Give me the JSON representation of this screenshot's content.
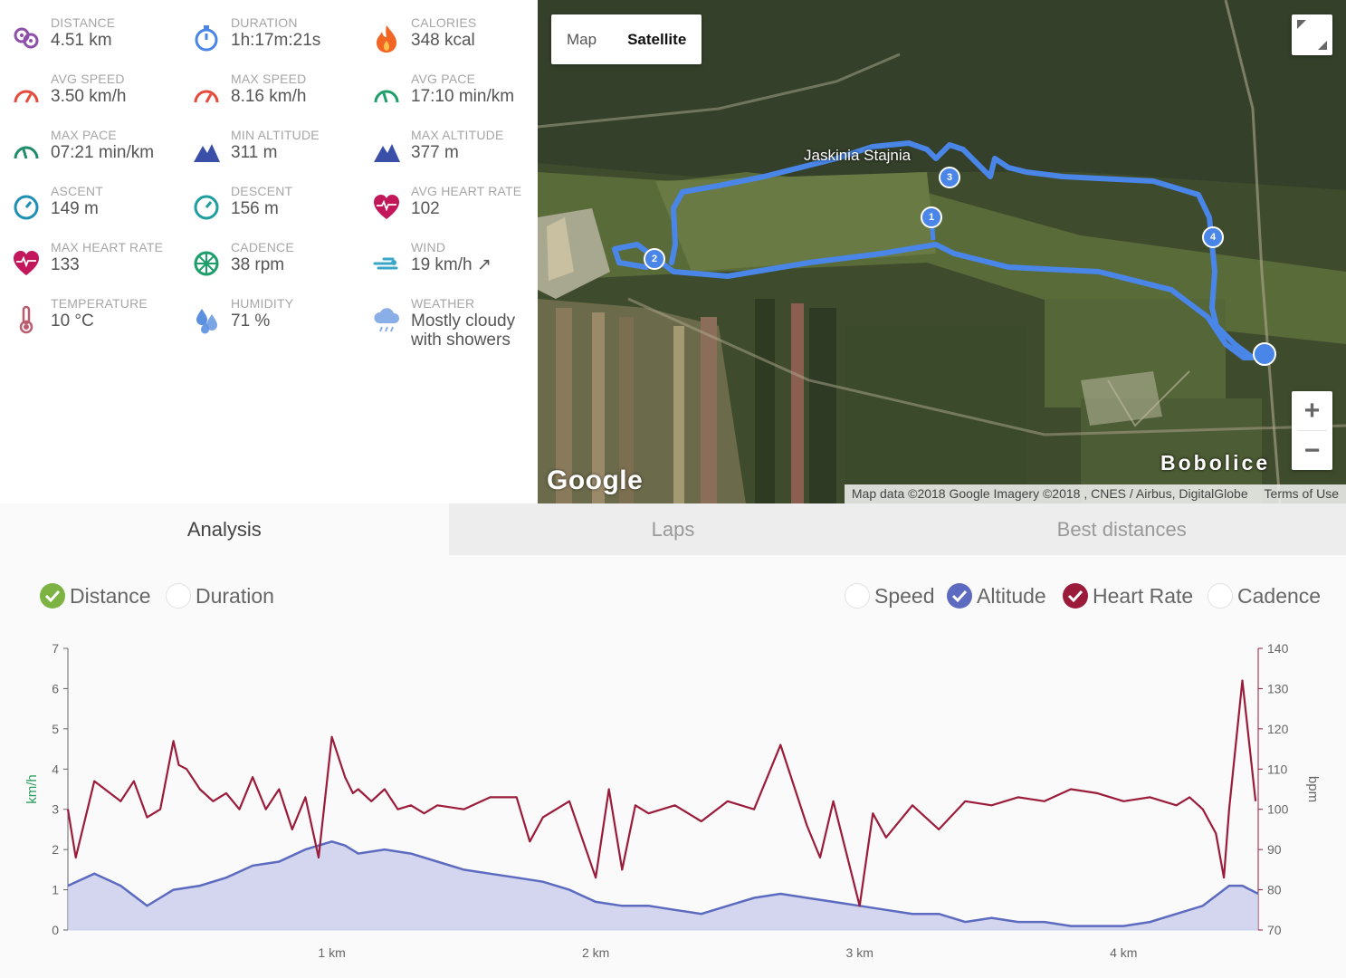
{
  "stats": [
    {
      "label": "DISTANCE",
      "value": "4.51 km",
      "icon": "distance-icon",
      "color": "#8e4fa8"
    },
    {
      "label": "DURATION",
      "value": "1h:17m:21s",
      "icon": "stopwatch-icon",
      "color": "#4a86e8"
    },
    {
      "label": "CALORIES",
      "value": "348 kcal",
      "icon": "flame-icon",
      "color": "#f26522"
    },
    {
      "label": "AVG SPEED",
      "value": "3.50 km/h",
      "icon": "speedometer-icon",
      "color": "#e44b3c"
    },
    {
      "label": "MAX SPEED",
      "value": "8.16 km/h",
      "icon": "speedometer-icon",
      "color": "#e44b3c"
    },
    {
      "label": "AVG PACE",
      "value": "17:10 min/km",
      "icon": "gauge-icon",
      "color": "#1e9e6b"
    },
    {
      "label": "MAX PACE",
      "value": "07:21 min/km",
      "icon": "gauge-icon",
      "color": "#1e8c6b"
    },
    {
      "label": "MIN ALTITUDE",
      "value": "311 m",
      "icon": "mountain-icon",
      "color": "#3a4fa8"
    },
    {
      "label": "MAX ALTITUDE",
      "value": "377 m",
      "icon": "mountain-icon",
      "color": "#3a4fa8"
    },
    {
      "label": "ASCENT",
      "value": "149 m",
      "icon": "compass-icon",
      "color": "#1e8fb5"
    },
    {
      "label": "DESCENT",
      "value": "156 m",
      "icon": "compass-icon",
      "color": "#1e9e9e"
    },
    {
      "label": "AVG HEART RATE",
      "value": "102",
      "icon": "heart-icon",
      "color": "#c2185b"
    },
    {
      "label": "MAX HEART RATE",
      "value": "133",
      "icon": "heart-icon",
      "color": "#c2185b"
    },
    {
      "label": "CADENCE",
      "value": "38 rpm",
      "icon": "wheel-icon",
      "color": "#1e9e6b"
    },
    {
      "label": "WIND",
      "value": "19 km/h ↗",
      "icon": "wind-icon",
      "color": "#3aa6c8"
    },
    {
      "label": "TEMPERATURE",
      "value": "10 °C",
      "icon": "thermometer-icon",
      "color": "#b85c6e"
    },
    {
      "label": "HUMIDITY",
      "value": "71 %",
      "icon": "droplets-icon",
      "color": "#5b8fe0"
    },
    {
      "label": "WEATHER",
      "value": "Mostly cloudy with showers",
      "icon": "cloud-rain-icon",
      "color": "#8aaee8"
    }
  ],
  "map": {
    "type_buttons": [
      "Map",
      "Satellite"
    ],
    "active_type": "Satellite",
    "zoom_in": "+",
    "zoom_out": "−",
    "logo": "Google",
    "attribution": "Map data ©2018 Google Imagery ©2018 , CNES / Airbus, DigitalGlobe",
    "terms": "Terms of Use",
    "place_label": "Bobolice",
    "poi_label": "Jaskinia Stajnia",
    "lap_markers": [
      "1",
      "2",
      "3",
      "4"
    ],
    "route_color": "#4a86e8"
  },
  "tabs": [
    {
      "label": "Analysis",
      "active": true
    },
    {
      "label": "Laps",
      "active": false
    },
    {
      "label": "Best distances",
      "active": false
    }
  ],
  "xaxis_options": [
    {
      "label": "Distance",
      "checked": true,
      "color": "#7cb342"
    },
    {
      "label": "Duration",
      "checked": false,
      "color": "#cccccc"
    }
  ],
  "series_options": [
    {
      "label": "Speed",
      "checked": false,
      "color": "#cccccc"
    },
    {
      "label": "Altitude",
      "checked": true,
      "color": "#5c6bc0"
    },
    {
      "label": "Heart Rate",
      "checked": true,
      "color": "#9b1b3a"
    },
    {
      "label": "Cadence",
      "checked": false,
      "color": "#cccccc"
    }
  ],
  "chart_data": {
    "type": "line",
    "xlabel": "",
    "x_unit": "km",
    "x_ticks": [
      "1 km",
      "2 km",
      "3 km",
      "4 km"
    ],
    "x_tick_values": [
      1,
      2,
      3,
      4
    ],
    "xlim": [
      0,
      4.51
    ],
    "left_axis": {
      "label": "km/h",
      "ylim": [
        0,
        7
      ],
      "ticks": [
        0,
        1,
        2,
        3,
        4,
        5,
        6,
        7
      ],
      "color": "#2e9e5e"
    },
    "right_axis": {
      "label": "bpm",
      "ylim": [
        70,
        140
      ],
      "ticks": [
        70,
        80,
        90,
        100,
        110,
        120,
        130,
        140
      ],
      "color": "#9b1b3a"
    },
    "series": [
      {
        "name": "Heart Rate",
        "axis": "right",
        "color": "#9b1b3a",
        "x": [
          0.0,
          0.03,
          0.1,
          0.2,
          0.25,
          0.3,
          0.35,
          0.4,
          0.42,
          0.45,
          0.5,
          0.55,
          0.6,
          0.65,
          0.7,
          0.75,
          0.8,
          0.85,
          0.9,
          0.95,
          1.0,
          1.05,
          1.08,
          1.1,
          1.15,
          1.2,
          1.25,
          1.3,
          1.35,
          1.4,
          1.5,
          1.6,
          1.7,
          1.75,
          1.8,
          1.9,
          2.0,
          2.05,
          2.1,
          2.15,
          2.2,
          2.3,
          2.4,
          2.5,
          2.6,
          2.7,
          2.8,
          2.85,
          2.9,
          3.0,
          3.05,
          3.1,
          3.2,
          3.3,
          3.4,
          3.5,
          3.6,
          3.7,
          3.8,
          3.9,
          4.0,
          4.1,
          4.2,
          4.25,
          4.3,
          4.35,
          4.38,
          4.4,
          4.45,
          4.5
        ],
        "values": [
          100,
          88,
          107,
          102,
          107,
          98,
          100,
          117,
          111,
          110,
          105,
          102,
          104,
          100,
          108,
          100,
          105,
          95,
          103,
          88,
          118,
          108,
          104,
          105,
          102,
          105,
          100,
          101,
          99,
          101,
          100,
          103,
          103,
          92,
          98,
          102,
          83,
          105,
          85,
          101,
          99,
          101,
          97,
          102,
          100,
          116,
          96,
          88,
          102,
          76,
          99,
          93,
          101,
          95,
          102,
          101,
          103,
          102,
          105,
          104,
          102,
          103,
          101,
          103,
          100,
          94,
          83,
          100,
          132,
          102
        ]
      },
      {
        "name": "Altitude",
        "axis": "right",
        "color": "#5c6bc0",
        "x": [
          0.0,
          0.1,
          0.2,
          0.3,
          0.4,
          0.5,
          0.6,
          0.7,
          0.8,
          0.9,
          1.0,
          1.05,
          1.1,
          1.2,
          1.3,
          1.4,
          1.5,
          1.6,
          1.7,
          1.8,
          1.9,
          2.0,
          2.1,
          2.2,
          2.3,
          2.4,
          2.5,
          2.6,
          2.7,
          2.8,
          2.9,
          3.0,
          3.1,
          3.2,
          3.3,
          3.4,
          3.5,
          3.6,
          3.7,
          3.8,
          3.9,
          4.0,
          4.1,
          4.2,
          4.3,
          4.4,
          4.45,
          4.51
        ],
        "values": [
          81,
          84,
          81,
          76,
          80,
          81,
          83,
          86,
          87,
          90,
          92,
          91,
          89,
          90,
          89,
          87,
          85,
          84,
          83,
          82,
          80,
          77,
          76,
          76,
          75,
          74,
          76,
          78,
          79,
          78,
          77,
          76,
          75,
          74,
          74,
          72,
          73,
          72,
          72,
          71,
          71,
          71,
          72,
          74,
          76,
          81,
          81,
          79
        ]
      }
    ]
  }
}
